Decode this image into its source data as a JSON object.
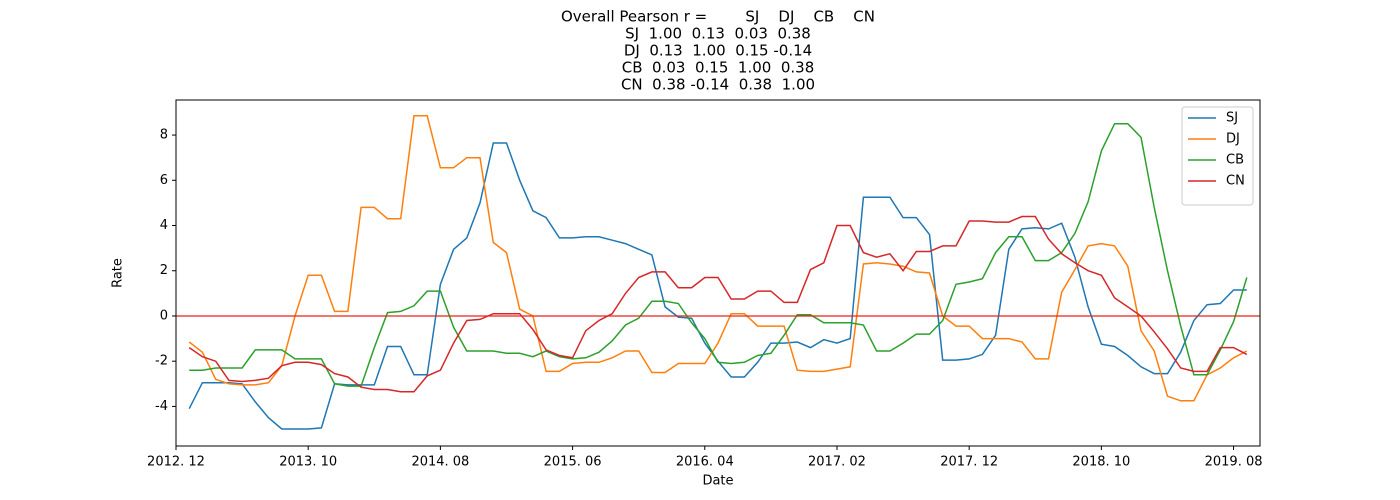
{
  "chart_data": {
    "type": "line",
    "title_lines": [
      "Overall Pearson r =        SJ    DJ    CB    CN",
      "SJ  1.00  0.13  0.03  0.38",
      "DJ  0.13  1.00  0.15 -0.14",
      "CB  0.03  0.15  1.00  0.38",
      "CN  0.38 -0.14  0.38  1.00"
    ],
    "x_label": "Date",
    "y_label": "Rate",
    "x": [
      "2013. 01",
      "2013. 02",
      "2013. 03",
      "2013. 04",
      "2013. 05",
      "2013. 06",
      "2013. 07",
      "2013. 08",
      "2013. 09",
      "2013. 10",
      "2013. 11",
      "2013. 12",
      "2014. 01",
      "2014. 02",
      "2014. 03",
      "2014. 04",
      "2014. 05",
      "2014. 06",
      "2014. 07",
      "2014. 08",
      "2014. 09",
      "2014. 10",
      "2014. 11",
      "2014. 12",
      "2015. 01",
      "2015. 02",
      "2015. 03",
      "2015. 04",
      "2015. 05",
      "2015. 06",
      "2015. 07",
      "2015. 08",
      "2015. 09",
      "2015. 10",
      "2015. 11",
      "2015. 12",
      "2016. 01",
      "2016. 02",
      "2016. 03",
      "2016. 04",
      "2016. 05",
      "2016. 06",
      "2016. 07",
      "2016. 08",
      "2016. 09",
      "2016. 10",
      "2016. 11",
      "2016. 12",
      "2017. 01",
      "2017. 02",
      "2017. 03",
      "2017. 04",
      "2017. 05",
      "2017. 06",
      "2017. 07",
      "2017. 08",
      "2017. 09",
      "2017. 10",
      "2017. 11",
      "2017. 12",
      "2018. 01",
      "2018. 02",
      "2018. 03",
      "2018. 04",
      "2018. 05",
      "2018. 06",
      "2018. 07",
      "2018. 08",
      "2018. 09",
      "2018. 10",
      "2018. 11",
      "2018. 12",
      "2019. 01",
      "2019. 02",
      "2019. 03",
      "2019. 04",
      "2019. 05",
      "2019. 06",
      "2019. 07",
      "2019. 08",
      "2019. 09"
    ],
    "series": [
      {
        "name": "SJ",
        "color": "#1f77b4",
        "values": [
          -4.1,
          -2.95,
          -2.95,
          -2.95,
          -3.0,
          -3.8,
          -4.5,
          -5.0,
          -5.0,
          -5.0,
          -4.95,
          -3.0,
          -3.05,
          -3.05,
          -3.05,
          -1.35,
          -1.35,
          -2.6,
          -2.6,
          1.4,
          2.95,
          3.45,
          5.0,
          7.65,
          7.65,
          6.0,
          4.65,
          4.35,
          3.45,
          3.45,
          3.5,
          3.5,
          3.35,
          3.2,
          2.95,
          2.7,
          0.4,
          -0.05,
          -0.1,
          -1.2,
          -2.0,
          -2.7,
          -2.7,
          -2.05,
          -1.2,
          -1.2,
          -1.15,
          -1.4,
          -1.05,
          -1.2,
          -1.0,
          5.25,
          5.25,
          5.25,
          4.35,
          4.35,
          3.6,
          -1.95,
          -1.95,
          -1.9,
          -1.7,
          -0.85,
          2.95,
          3.85,
          3.9,
          3.85,
          4.1,
          2.6,
          0.4,
          -1.25,
          -1.35,
          -1.75,
          -2.25,
          -2.55,
          -2.55,
          -1.6,
          -0.2,
          0.5,
          0.55,
          1.15,
          1.15
        ]
      },
      {
        "name": "DJ",
        "color": "#ff7f0e",
        "values": [
          -1.15,
          -1.6,
          -2.8,
          -3.0,
          -3.05,
          -3.05,
          -2.95,
          -2.2,
          0.0,
          1.8,
          1.8,
          0.2,
          0.2,
          4.8,
          4.8,
          4.3,
          4.3,
          8.85,
          8.85,
          6.55,
          6.55,
          7.0,
          7.0,
          3.25,
          2.8,
          0.3,
          0.0,
          -2.45,
          -2.45,
          -2.1,
          -2.05,
          -2.05,
          -1.85,
          -1.55,
          -1.55,
          -2.5,
          -2.5,
          -2.1,
          -2.1,
          -2.1,
          -1.2,
          0.1,
          0.1,
          -0.45,
          -0.45,
          -0.45,
          -2.4,
          -2.45,
          -2.45,
          -2.35,
          -2.25,
          2.3,
          2.35,
          2.3,
          2.2,
          1.95,
          1.9,
          0.0,
          -0.45,
          -0.45,
          -1.0,
          -1.0,
          -1.0,
          -1.15,
          -1.9,
          -1.9,
          1.05,
          2.05,
          3.1,
          3.2,
          3.1,
          2.2,
          -0.65,
          -1.55,
          -3.55,
          -3.75,
          -3.75,
          -2.6,
          -2.3,
          -1.85,
          -1.55
        ]
      },
      {
        "name": "CB",
        "color": "#2ca02c",
        "values": [
          -2.4,
          -2.4,
          -2.3,
          -2.3,
          -2.3,
          -1.5,
          -1.5,
          -1.5,
          -1.9,
          -1.9,
          -1.9,
          -3.0,
          -3.1,
          -3.1,
          -1.4,
          0.15,
          0.2,
          0.45,
          1.1,
          1.1,
          -0.5,
          -1.55,
          -1.55,
          -1.55,
          -1.65,
          -1.65,
          -1.8,
          -1.55,
          -1.8,
          -1.9,
          -1.85,
          -1.6,
          -1.1,
          -0.4,
          -0.1,
          0.65,
          0.65,
          0.55,
          -0.3,
          -1.0,
          -2.05,
          -2.1,
          -2.05,
          -1.75,
          -1.65,
          -0.85,
          0.05,
          0.05,
          -0.3,
          -0.3,
          -0.3,
          -0.4,
          -1.55,
          -1.55,
          -1.2,
          -0.8,
          -0.8,
          -0.2,
          1.4,
          1.5,
          1.65,
          2.8,
          3.5,
          3.5,
          2.45,
          2.45,
          2.8,
          3.65,
          5.05,
          7.3,
          8.5,
          8.5,
          7.9,
          4.8,
          2.0,
          -0.45,
          -2.6,
          -2.6,
          -1.5,
          -0.25,
          1.7
        ]
      },
      {
        "name": "CN",
        "color": "#d62728",
        "values": [
          -1.4,
          -1.8,
          -2.0,
          -2.85,
          -2.9,
          -2.85,
          -2.75,
          -2.2,
          -2.05,
          -2.05,
          -2.15,
          -2.55,
          -2.7,
          -3.15,
          -3.25,
          -3.25,
          -3.35,
          -3.35,
          -2.65,
          -2.4,
          -1.2,
          -0.2,
          -0.15,
          0.1,
          0.1,
          0.1,
          -0.6,
          -1.5,
          -1.75,
          -1.85,
          -0.65,
          -0.2,
          0.1,
          1.0,
          1.7,
          1.95,
          1.95,
          1.25,
          1.25,
          1.7,
          1.7,
          0.75,
          0.75,
          1.1,
          1.1,
          0.6,
          0.6,
          2.05,
          2.35,
          4.0,
          4.0,
          2.8,
          2.6,
          2.75,
          2.0,
          2.85,
          2.85,
          3.1,
          3.1,
          4.2,
          4.2,
          4.15,
          4.15,
          4.4,
          4.4,
          3.4,
          2.75,
          2.35,
          2.0,
          1.8,
          0.8,
          0.4,
          0.0,
          -0.7,
          -1.45,
          -2.3,
          -2.45,
          -2.45,
          -1.4,
          -1.4,
          -1.7
        ]
      }
    ],
    "reference_line": {
      "value": 0,
      "color": "#e8261a"
    },
    "xlim": [
      "2012. 12",
      "2019. 10"
    ],
    "xticks": [
      "2012. 12",
      "2013. 10",
      "2014. 08",
      "2015. 06",
      "2016. 04",
      "2017. 02",
      "2017. 12",
      "2018. 10",
      "2019. 08"
    ],
    "ylim": [
      -5.75,
      9.55
    ],
    "yticks": [
      -4,
      -2,
      0,
      2,
      4,
      6,
      8
    ],
    "grid": false,
    "legend": "upper right"
  }
}
